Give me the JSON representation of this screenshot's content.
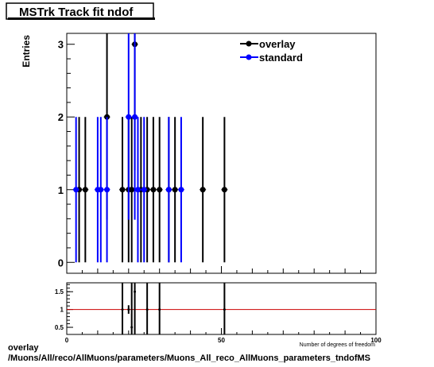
{
  "chart_data": {
    "type": "scatter",
    "title": "MSTrk Track fit ndof",
    "ylabel": "Entries",
    "xlabel": "Number of degrees of freedom",
    "xlim": [
      0,
      100
    ],
    "ylim": [
      -0.15,
      3.15
    ],
    "x_ticks": [
      "0",
      "50",
      "100"
    ],
    "y_ticks": [
      "0",
      "1",
      "2",
      "3"
    ],
    "legend_position": "top-right",
    "series": [
      {
        "name": "overlay",
        "color": "#000000",
        "x": [
          4,
          6,
          13,
          18,
          20,
          21,
          22,
          24,
          26,
          28,
          30,
          33,
          35,
          44,
          51
        ],
        "y": [
          1,
          1,
          2,
          1,
          1,
          1,
          3,
          1,
          1,
          1,
          1,
          1,
          1,
          1,
          1
        ]
      },
      {
        "name": "standard",
        "color": "#0000ff",
        "x": [
          3,
          10,
          11,
          13,
          20,
          22,
          23,
          25,
          33,
          37
        ],
        "y": [
          1,
          1,
          1,
          1,
          2,
          2,
          1,
          1,
          1,
          1
        ]
      }
    ],
    "ratio_panel": {
      "ylim": [
        0.3,
        1.75
      ],
      "y_ticks": [
        "0.5",
        "1",
        "1.5"
      ],
      "reference_line": 1,
      "reference_color": "#cc0000",
      "points": [
        {
          "x": 18,
          "y": 1,
          "yerr": 1.6
        },
        {
          "x": 20,
          "y": 1,
          "yerr": 0.12
        },
        {
          "x": 21,
          "y": 0.5,
          "yerr": 1.4
        },
        {
          "x": 22,
          "y": 1.5,
          "yerr": 1.4
        },
        {
          "x": 26,
          "y": 1,
          "yerr": 1.6
        },
        {
          "x": 30,
          "y": 1,
          "yerr": 1.6
        },
        {
          "x": 51,
          "y": 1,
          "yerr": 1.6
        }
      ]
    }
  },
  "footer": {
    "line1": "overlay",
    "line2": "/Muons/All/reco/AllMuons/parameters/Muons_All_reco_AllMuons_parameters_tndofMS"
  }
}
